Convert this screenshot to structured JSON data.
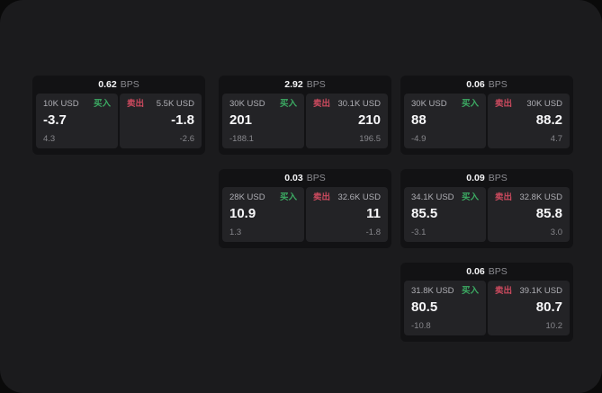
{
  "labels": {
    "buy": "买入",
    "sell": "卖出",
    "bps_unit": "BPS"
  },
  "colors": {
    "buy_green": "#3cab63",
    "sell_red": "#cb4a5e",
    "surface_bg": "#1b1b1d",
    "card_bg": "#121214",
    "tile_bg": "#232326"
  },
  "cards": [
    {
      "bps": "0.62",
      "buy": {
        "amount": "10K USD",
        "value": "-3.7",
        "sub": "4.3"
      },
      "sell": {
        "amount": "5.5K USD",
        "value": "-1.8",
        "sub": "-2.6"
      }
    },
    {
      "bps": "2.92",
      "buy": {
        "amount": "30K USD",
        "value": "201",
        "sub": "-188.1"
      },
      "sell": {
        "amount": "30.1K USD",
        "value": "210",
        "sub": "196.5"
      }
    },
    {
      "bps": "0.06",
      "buy": {
        "amount": "30K USD",
        "value": "88",
        "sub": "-4.9"
      },
      "sell": {
        "amount": "30K USD",
        "value": "88.2",
        "sub": "4.7"
      }
    },
    {
      "bps": "0.03",
      "buy": {
        "amount": "28K USD",
        "value": "10.9",
        "sub": "1.3"
      },
      "sell": {
        "amount": "32.6K USD",
        "value": "11",
        "sub": "-1.8"
      }
    },
    {
      "bps": "0.09",
      "buy": {
        "amount": "34.1K USD",
        "value": "85.5",
        "sub": "-3.1"
      },
      "sell": {
        "amount": "32.8K USD",
        "value": "85.8",
        "sub": "3.0"
      }
    },
    {
      "bps": "0.06",
      "buy": {
        "amount": "31.8K USD",
        "value": "80.5",
        "sub": "-10.8"
      },
      "sell": {
        "amount": "39.1K USD",
        "value": "80.7",
        "sub": "10.2"
      }
    }
  ]
}
